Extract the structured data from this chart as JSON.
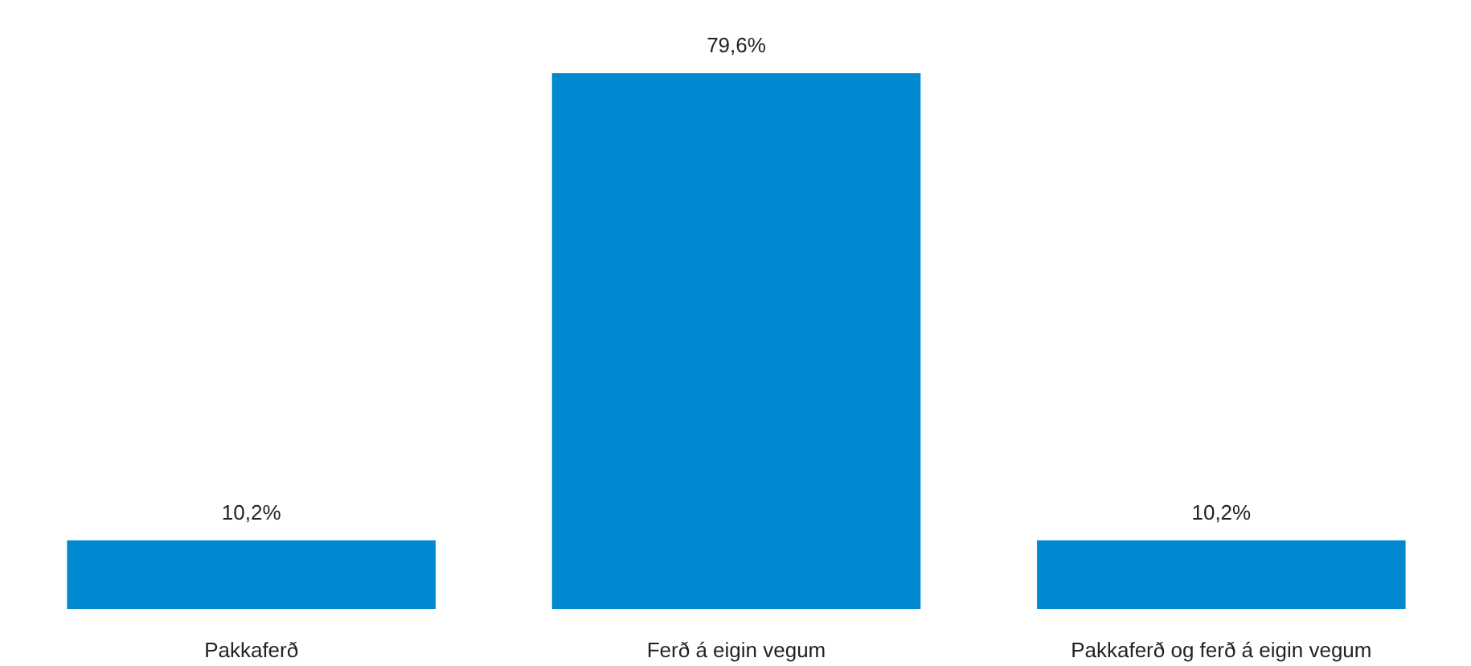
{
  "chart_data": {
    "type": "bar",
    "categories": [
      "Pakkaferð",
      "Ferð á eigin vegum",
      "Pakkaferð og ferð á eigin vegum"
    ],
    "values": [
      10.2,
      79.6,
      10.2
    ],
    "value_labels": [
      "10,2%",
      "79,6%",
      "10,2%"
    ],
    "color": "#0088d1",
    "grid": false
  }
}
